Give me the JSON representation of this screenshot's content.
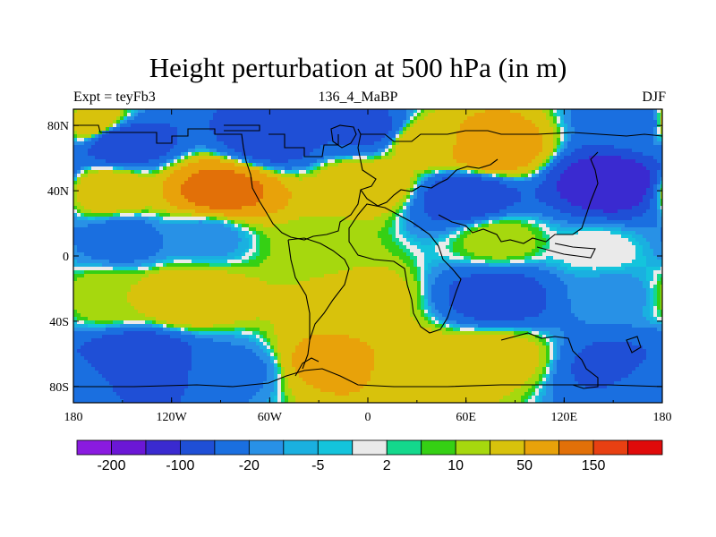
{
  "chart_data": {
    "type": "heatmap",
    "title": "Height perturbation at 500 hPa (in m)",
    "left_string": "Expt = teyFb3",
    "center_string": "136_4_MaBP",
    "right_string": "DJF",
    "x_range": [
      -180,
      180
    ],
    "y_range": [
      -90,
      90
    ],
    "x_ticks": [
      {
        "value": -180,
        "label": "180"
      },
      {
        "value": -120,
        "label": "120W"
      },
      {
        "value": -60,
        "label": "60W"
      },
      {
        "value": 0,
        "label": "0"
      },
      {
        "value": 60,
        "label": "60E"
      },
      {
        "value": 120,
        "label": "120E"
      },
      {
        "value": 180,
        "label": "180"
      }
    ],
    "y_ticks": [
      {
        "value": 80,
        "label": "80N"
      },
      {
        "value": 40,
        "label": "40N"
      },
      {
        "value": 0,
        "label": "0"
      },
      {
        "value": -40,
        "label": "40S"
      },
      {
        "value": -80,
        "label": "80S"
      }
    ],
    "colorbar": {
      "colors": [
        "#8a1be0",
        "#6b17d6",
        "#3a2ad0",
        "#1f4fd6",
        "#1a6fe0",
        "#2891e6",
        "#1ab0e0",
        "#14c4dc",
        "#eaeaea",
        "#14d88c",
        "#35d014",
        "#a6d80e",
        "#d8c20c",
        "#e8a20a",
        "#e27008",
        "#e84012",
        "#e00a0a"
      ],
      "labels": [
        {
          "after_index": 0,
          "text": "-200"
        },
        {
          "after_index": 2,
          "text": "-100"
        },
        {
          "after_index": 4,
          "text": "-20"
        },
        {
          "after_index": 6,
          "text": "-5"
        },
        {
          "after_index": 8,
          "text": "2"
        },
        {
          "after_index": 10,
          "text": "10"
        },
        {
          "after_index": 12,
          "text": "50"
        },
        {
          "after_index": 14,
          "text": "150"
        }
      ]
    },
    "field_features": [
      {
        "lon": -90,
        "lat": 40,
        "value": 120
      },
      {
        "lon": -160,
        "lat": 40,
        "value": 40
      },
      {
        "lon": -170,
        "lat": 82,
        "value": 40
      },
      {
        "lon": -150,
        "lat": 70,
        "value": -80
      },
      {
        "lon": -60,
        "lat": 72,
        "value": -70
      },
      {
        "lon": 0,
        "lat": 78,
        "value": -60
      },
      {
        "lon": 75,
        "lat": 66,
        "value": 80
      },
      {
        "lon": 35,
        "lat": 70,
        "value": 40
      },
      {
        "lon": 0,
        "lat": 44,
        "value": 40
      },
      {
        "lon": 60,
        "lat": 36,
        "value": -80
      },
      {
        "lon": 150,
        "lat": 44,
        "value": -150
      },
      {
        "lon": 165,
        "lat": 82,
        "value": -40
      },
      {
        "lon": -150,
        "lat": 10,
        "value": -30
      },
      {
        "lon": -100,
        "lat": 12,
        "value": -15
      },
      {
        "lon": -30,
        "lat": 5,
        "value": 12
      },
      {
        "lon": 80,
        "lat": 10,
        "value": 15
      },
      {
        "lon": 140,
        "lat": 4,
        "value": 1
      },
      {
        "lon": -110,
        "lat": -25,
        "value": 45
      },
      {
        "lon": -160,
        "lat": -25,
        "value": 20
      },
      {
        "lon": -5,
        "lat": -25,
        "value": 30
      },
      {
        "lon": 80,
        "lat": -25,
        "value": -70
      },
      {
        "lon": 150,
        "lat": -25,
        "value": -15
      },
      {
        "lon": -140,
        "lat": -65,
        "value": -100
      },
      {
        "lon": -80,
        "lat": -70,
        "value": -25
      },
      {
        "lon": -25,
        "lat": -65,
        "value": 60
      },
      {
        "lon": 30,
        "lat": -68,
        "value": 45
      },
      {
        "lon": 80,
        "lat": -62,
        "value": 30
      },
      {
        "lon": 150,
        "lat": -68,
        "value": -60
      },
      {
        "lon": 175,
        "lat": -78,
        "value": -20
      }
    ]
  }
}
